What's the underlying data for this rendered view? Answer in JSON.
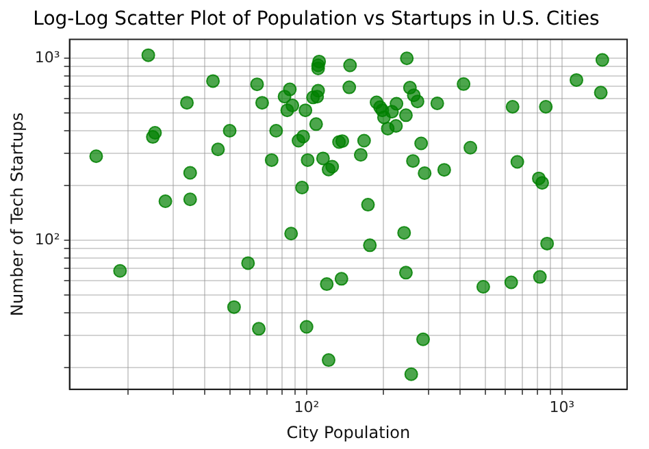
{
  "chart_data": {
    "type": "scatter",
    "title": "Log-Log Scatter Plot of Population vs Startups in U.S. Cities",
    "xlabel": "City Population",
    "ylabel": "Number of Tech Startups",
    "log": "xy",
    "grid": true,
    "marker": "circle",
    "legend": false,
    "xlim": [
      11.8,
      1800
    ],
    "ylim": [
      15.2,
      1270
    ],
    "xticks": [
      {
        "value": 20,
        "label": null
      },
      {
        "value": 30,
        "label": null
      },
      {
        "value": 40,
        "label": null
      },
      {
        "value": 50,
        "label": null
      },
      {
        "value": 60,
        "label": null
      },
      {
        "value": 70,
        "label": null
      },
      {
        "value": 80,
        "label": null
      },
      {
        "value": 90,
        "label": null
      },
      {
        "value": 100,
        "label": "10²"
      },
      {
        "value": 200,
        "label": null
      },
      {
        "value": 300,
        "label": null
      },
      {
        "value": 400,
        "label": null
      },
      {
        "value": 500,
        "label": null
      },
      {
        "value": 600,
        "label": null
      },
      {
        "value": 700,
        "label": null
      },
      {
        "value": 800,
        "label": null
      },
      {
        "value": 900,
        "label": null
      },
      {
        "value": 1000,
        "label": "10³"
      }
    ],
    "yticks": [
      {
        "value": 20,
        "label": null
      },
      {
        "value": 30,
        "label": null
      },
      {
        "value": 40,
        "label": null
      },
      {
        "value": 50,
        "label": null
      },
      {
        "value": 60,
        "label": null
      },
      {
        "value": 70,
        "label": null
      },
      {
        "value": 80,
        "label": null
      },
      {
        "value": 90,
        "label": null
      },
      {
        "value": 100,
        "label": "10²"
      },
      {
        "value": 200,
        "label": null
      },
      {
        "value": 300,
        "label": null
      },
      {
        "value": 400,
        "label": null
      },
      {
        "value": 500,
        "label": null
      },
      {
        "value": 600,
        "label": null
      },
      {
        "value": 700,
        "label": null
      },
      {
        "value": 800,
        "label": null
      },
      {
        "value": 900,
        "label": null
      },
      {
        "value": 1000,
        "label": "10³"
      }
    ],
    "series": [
      {
        "color": "#008000",
        "x": [
          24,
          15,
          43,
          34,
          25,
          25.5,
          45,
          50,
          35,
          28,
          35,
          64,
          67,
          76,
          73,
          82,
          86,
          84,
          88,
          99,
          93,
          97,
          109,
          101,
          96,
          112,
          111,
          111,
          111,
          106,
          110,
          116,
          122,
          126,
          134,
          138,
          148,
          147,
          247,
          254,
          263,
          272,
          188,
          194,
          198,
          225,
          216,
          201,
          245,
          224,
          208,
          325,
          412,
          168,
          163,
          281,
          261,
          290,
          346,
          438,
          174,
          641,
          865,
          669,
          812,
          837,
          1140,
          1440,
          1420,
          18.6,
          59,
          87,
          120,
          137,
          52,
          65,
          100,
          122,
          241,
          177,
          245,
          286,
          257,
          492,
          633,
          820,
          875
        ],
        "values": [
          1040,
          290,
          750,
          570,
          370,
          390,
          316,
          400,
          235,
          164,
          168,
          720,
          570,
          400,
          276,
          616,
          675,
          518,
          551,
          518,
          353,
          372,
          435,
          276,
          195,
          960,
          915,
          880,
          664,
          610,
          616,
          282,
          245,
          254,
          347,
          351,
          915,
          693,
          1000,
          690,
          627,
          580,
          573,
          539,
          518,
          563,
          509,
          474,
          487,
          425,
          411,
          566,
          722,
          353,
          295,
          341,
          273,
          234,
          244,
          323,
          157,
          542,
          542,
          270,
          219,
          207,
          760,
          980,
          648,
          68,
          75,
          109,
          57.5,
          61.5,
          43,
          32.7,
          33.5,
          22,
          110,
          94,
          66.5,
          28.6,
          18.4,
          55.6,
          58.8,
          63,
          96
        ]
      }
    ]
  }
}
